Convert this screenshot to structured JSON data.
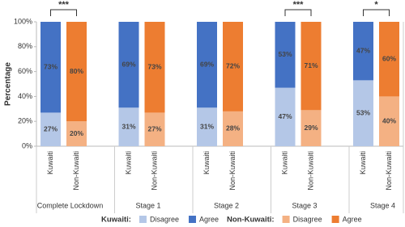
{
  "chart_data": {
    "type": "grouped_stacked_bar",
    "y_label": "Percentage",
    "categories": [
      "Complete Lockdown",
      "Stage 1",
      "Stage 2",
      "Stage 3",
      "Stage 4"
    ],
    "bar_labels": [
      "Kuwaiti",
      "Non-Kuwaiti"
    ],
    "significance": [
      "***",
      null,
      null,
      "***",
      "*"
    ],
    "groups": [
      {
        "name": "Kuwaiti:",
        "series": [
          {
            "name": "Disagree",
            "color": "#b4c7e7",
            "values": [
              27,
              31,
              31,
              47,
              53
            ],
            "value_labels": [
              "27%",
              "31%",
              "31%",
              "47%",
              "53%"
            ]
          },
          {
            "name": "Agree",
            "color": "#4472c4",
            "values": [
              73,
              69,
              69,
              53,
              47
            ],
            "value_labels": [
              "73%",
              "69%",
              "69%",
              "53%",
              "47%"
            ]
          }
        ]
      },
      {
        "name": "Non-Kuwaiti:",
        "series": [
          {
            "name": "Disagree",
            "color": "#f4b183",
            "values": [
              20,
              27,
              28,
              29,
              40
            ],
            "value_labels": [
              "20%",
              "27%",
              "28%",
              "29%",
              "40%"
            ]
          },
          {
            "name": "Agree",
            "color": "#ed7d31",
            "values": [
              80,
              73,
              72,
              71,
              60
            ],
            "value_labels": [
              "80%",
              "73%",
              "72%",
              "71%",
              "60%"
            ]
          }
        ]
      }
    ],
    "ylim": [
      0,
      100
    ],
    "yticks": [
      {
        "value": 0,
        "label": "0%"
      },
      {
        "value": 20,
        "label": "20%"
      },
      {
        "value": 40,
        "label": "40%"
      },
      {
        "value": 60,
        "label": "60%"
      },
      {
        "value": 80,
        "label": "80%"
      },
      {
        "value": 100,
        "label": "100%"
      }
    ],
    "grid": false
  }
}
